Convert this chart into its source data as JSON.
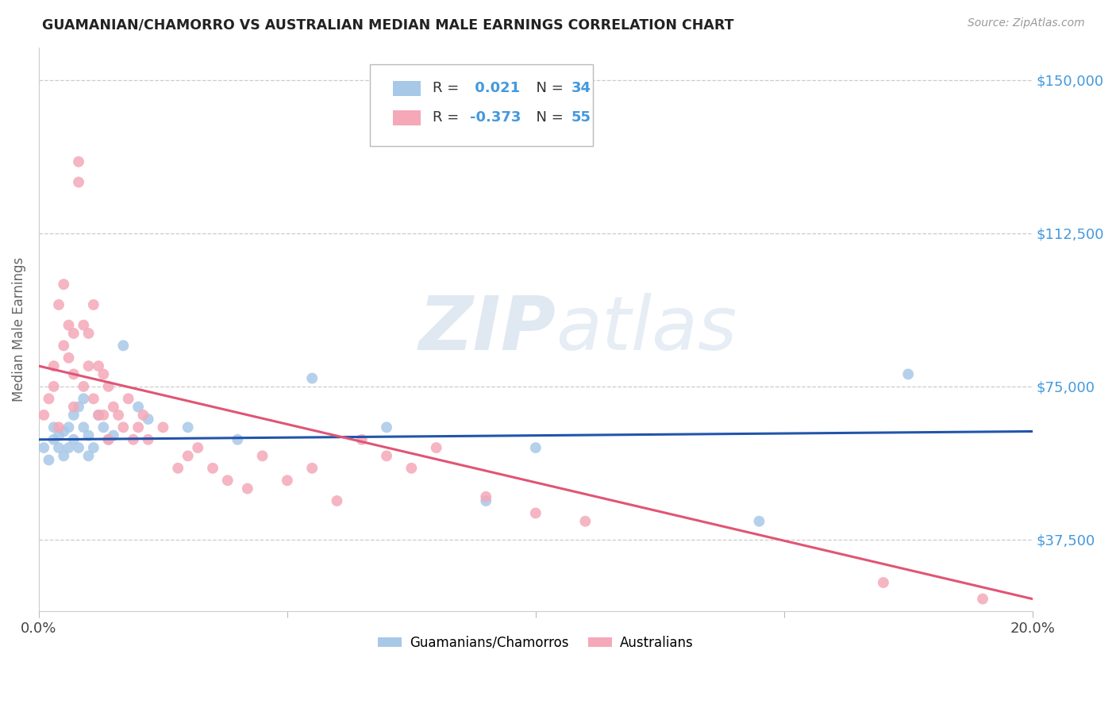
{
  "title": "GUAMANIAN/CHAMORRO VS AUSTRALIAN MEDIAN MALE EARNINGS CORRELATION CHART",
  "source": "Source: ZipAtlas.com",
  "ylabel": "Median Male Earnings",
  "xmin": 0.0,
  "xmax": 0.2,
  "ymin": 20000,
  "ymax": 158000,
  "legend_blue_label": "Guamanians/Chamorros",
  "legend_pink_label": "Australians",
  "blue_color": "#a8c8e8",
  "pink_color": "#f4a8b8",
  "blue_line_color": "#2255aa",
  "pink_line_color": "#e05575",
  "title_color": "#222222",
  "axis_label_color": "#666666",
  "ytick_color": "#4499dd",
  "background_color": "#ffffff",
  "grid_color": "#cccccc",
  "watermark_color": "#dde8f0",
  "blue_x": [
    0.001,
    0.002,
    0.003,
    0.003,
    0.004,
    0.004,
    0.005,
    0.005,
    0.006,
    0.006,
    0.007,
    0.007,
    0.008,
    0.008,
    0.009,
    0.009,
    0.01,
    0.01,
    0.011,
    0.012,
    0.013,
    0.014,
    0.015,
    0.017,
    0.02,
    0.022,
    0.03,
    0.04,
    0.055,
    0.07,
    0.09,
    0.1,
    0.145,
    0.175
  ],
  "blue_y": [
    60000,
    57000,
    62000,
    65000,
    60000,
    63000,
    58000,
    64000,
    60000,
    65000,
    68000,
    62000,
    70000,
    60000,
    65000,
    72000,
    58000,
    63000,
    60000,
    68000,
    65000,
    62000,
    63000,
    85000,
    70000,
    67000,
    65000,
    62000,
    77000,
    65000,
    47000,
    60000,
    42000,
    78000
  ],
  "pink_x": [
    0.001,
    0.002,
    0.003,
    0.003,
    0.004,
    0.004,
    0.005,
    0.005,
    0.006,
    0.006,
    0.007,
    0.007,
    0.007,
    0.008,
    0.008,
    0.009,
    0.009,
    0.01,
    0.01,
    0.011,
    0.011,
    0.012,
    0.012,
    0.013,
    0.013,
    0.014,
    0.014,
    0.015,
    0.016,
    0.017,
    0.018,
    0.019,
    0.02,
    0.021,
    0.022,
    0.025,
    0.028,
    0.03,
    0.032,
    0.035,
    0.038,
    0.042,
    0.045,
    0.05,
    0.055,
    0.06,
    0.065,
    0.07,
    0.075,
    0.08,
    0.09,
    0.1,
    0.11,
    0.17,
    0.19
  ],
  "pink_y": [
    68000,
    72000,
    75000,
    80000,
    65000,
    95000,
    85000,
    100000,
    90000,
    82000,
    78000,
    88000,
    70000,
    130000,
    125000,
    90000,
    75000,
    80000,
    88000,
    95000,
    72000,
    80000,
    68000,
    78000,
    68000,
    75000,
    62000,
    70000,
    68000,
    65000,
    72000,
    62000,
    65000,
    68000,
    62000,
    65000,
    55000,
    58000,
    60000,
    55000,
    52000,
    50000,
    58000,
    52000,
    55000,
    47000,
    62000,
    58000,
    55000,
    60000,
    48000,
    44000,
    42000,
    27000,
    23000
  ],
  "blue_trend_x": [
    0.0,
    0.2
  ],
  "blue_trend_y": [
    62000,
    64000
  ],
  "pink_trend_x": [
    0.0,
    0.2
  ],
  "pink_trend_y": [
    80000,
    23000
  ],
  "marker_size": 100,
  "ytick_vals": [
    37500,
    75000,
    112500,
    150000
  ],
  "ytick_labels": [
    "$37,500",
    "$75,000",
    "$112,500",
    "$150,000"
  ],
  "xtick_vals": [
    0.0,
    0.05,
    0.1,
    0.15,
    0.2
  ],
  "xtick_labels": [
    "0.0%",
    "",
    "",
    "",
    "20.0%"
  ]
}
